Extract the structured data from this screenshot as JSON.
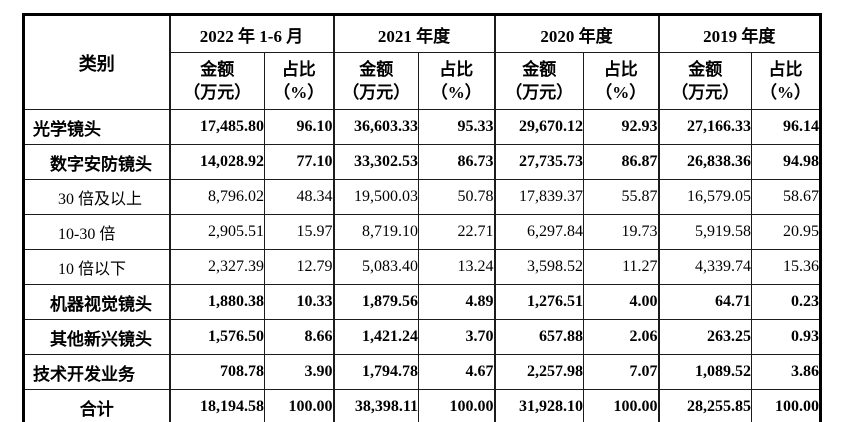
{
  "table": {
    "category_header": "类别",
    "col_groups": [
      {
        "label": "2022 年 1-6 月"
      },
      {
        "label": "2021 年度"
      },
      {
        "label": "2020 年度"
      },
      {
        "label": "2019 年度"
      }
    ],
    "sub_headers": {
      "amount_line1": "金额",
      "amount_line2": "（万元）",
      "ratio_line1": "占比",
      "ratio_line2": "（%）"
    },
    "rows": [
      {
        "category": "光学镜头",
        "indent": "0",
        "bold": true,
        "values": [
          "17,485.80",
          "96.10",
          "36,603.33",
          "95.33",
          "29,670.12",
          "92.93",
          "27,166.33",
          "96.14"
        ]
      },
      {
        "category": "数字安防镜头",
        "indent": "1",
        "bold": true,
        "values": [
          "14,028.92",
          "77.10",
          "33,302.53",
          "86.73",
          "27,735.73",
          "86.87",
          "26,838.36",
          "94.98"
        ]
      },
      {
        "category": "30 倍及以上",
        "indent": "2",
        "bold": false,
        "values": [
          "8,796.02",
          "48.34",
          "19,500.03",
          "50.78",
          "17,839.37",
          "55.87",
          "16,579.05",
          "58.67"
        ]
      },
      {
        "category": "10-30 倍",
        "indent": "2",
        "bold": false,
        "values": [
          "2,905.51",
          "15.97",
          "8,719.10",
          "22.71",
          "6,297.84",
          "19.73",
          "5,919.58",
          "20.95"
        ]
      },
      {
        "category": "10 倍以下",
        "indent": "2",
        "bold": false,
        "values": [
          "2,327.39",
          "12.79",
          "5,083.40",
          "13.24",
          "3,598.52",
          "11.27",
          "4,339.74",
          "15.36"
        ]
      },
      {
        "category": "机器视觉镜头",
        "indent": "1",
        "bold": true,
        "values": [
          "1,880.38",
          "10.33",
          "1,879.56",
          "4.89",
          "1,276.51",
          "4.00",
          "64.71",
          "0.23"
        ]
      },
      {
        "category": "其他新兴镜头",
        "indent": "1",
        "bold": true,
        "values": [
          "1,576.50",
          "8.66",
          "1,421.24",
          "3.70",
          "657.88",
          "2.06",
          "263.25",
          "0.93"
        ]
      },
      {
        "category": "技术开发业务",
        "indent": "0",
        "bold": true,
        "values": [
          "708.78",
          "3.90",
          "1,794.78",
          "4.67",
          "2,257.98",
          "7.07",
          "1,089.52",
          "3.86"
        ]
      },
      {
        "category": "合计",
        "indent": "center",
        "bold": true,
        "values": [
          "18,194.58",
          "100.00",
          "38,398.11",
          "100.00",
          "31,928.10",
          "100.00",
          "28,255.85",
          "100.00"
        ]
      }
    ],
    "colors": {
      "border": "#000000",
      "text": "#000000",
      "background": "#ffffff"
    }
  }
}
